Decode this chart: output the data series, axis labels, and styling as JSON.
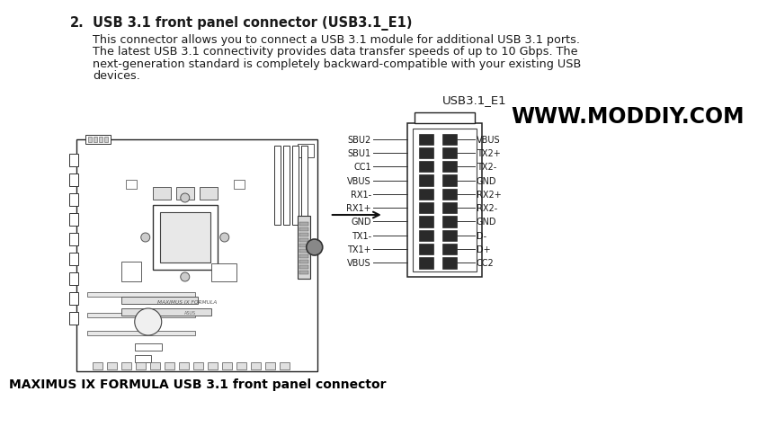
{
  "title_number": "2.",
  "title_bold": "USB 3.1 front panel connector (USB3.1_E1)",
  "body_lines": [
    "This connector allows you to connect a USB 3.1 module for additional USB 3.1 ports.",
    "The latest USB 3.1 connectivity provides data transfer speeds of up to 10 Gbps. The",
    "next-generation standard is completely backward-compatible with your existing USB",
    "devices."
  ],
  "watermark": "WWW.MODDIY.COM",
  "connector_label": "USB3.1_E1",
  "caption": "MAXIMUS IX FORMULA USB 3.1 front panel connector",
  "left_pins": [
    "SBU2",
    "SBU1",
    "CC1",
    "VBUS",
    "RX1-",
    "RX1+",
    "GND",
    "TX1-",
    "TX1+",
    "VBUS"
  ],
  "right_pins": [
    "VBUS",
    "TX2+",
    "TX2-",
    "GND",
    "RX2+",
    "RX2-",
    "GND",
    "D-",
    "D+",
    "CC2"
  ],
  "bg_color": "#ffffff",
  "text_color": "#1a1a1a",
  "line_color": "#555555",
  "pin_font_size": 7,
  "body_font_size": 9.2,
  "title_font_size": 10.5,
  "caption_font_size": 10,
  "watermark_font_size": 17,
  "connector_label_font_size": 9.5
}
